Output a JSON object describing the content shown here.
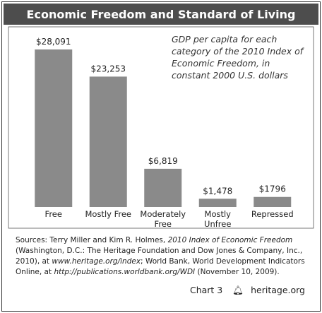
{
  "chart_data": {
    "type": "bar",
    "title": "Economic Freedom and Standard of Living",
    "annotation": "GDP per capita for each category of the 2010 Index of Economic Freedom, in constant 2000 U.S. dollars",
    "categories": [
      "Free",
      "Mostly Free",
      "Moderately\nFree",
      "Mostly\nUnfree",
      "Repressed"
    ],
    "values": [
      28091,
      23253,
      6819,
      1478,
      1796
    ],
    "value_labels": [
      "$28,091",
      "$23,253",
      "$6,819",
      "$1,478",
      "$1796"
    ],
    "color": "#8a8a8a",
    "source": [
      "Sources: Terry Miller and Kim R. Holmes, ",
      "2010 Index of Economic Freedom",
      " (Washington, D.C.: The Heritage Foundation and Dow Jones & Company, Inc., 2010), at ",
      "www.heritage.org/index",
      "; World Bank, World Development Indicators Online, at ",
      "http://publications.worldbank.org/WDI",
      " (November 10, 2009)."
    ],
    "chart_label": "Chart 3",
    "site": "heritage.org"
  }
}
